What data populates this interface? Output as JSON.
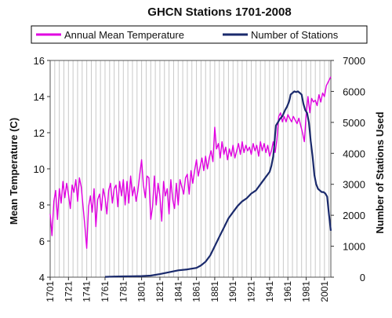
{
  "chart_data": {
    "type": "line",
    "title": "GHCN Stations 1701-2008",
    "ylabel_left": "Mean Temperature (C)",
    "ylabel_right": "Number of Stations Used",
    "xlim": [
      1701,
      2008
    ],
    "ylim_left": [
      4,
      16
    ],
    "ylim_right": [
      0,
      7000
    ],
    "left_ticks": [
      "4",
      "6",
      "8",
      "10",
      "12",
      "14",
      "16"
    ],
    "right_ticks": [
      "0",
      "1000",
      "2000",
      "3000",
      "4000",
      "5000",
      "6000",
      "7000"
    ],
    "x_ticks": [
      "1701",
      "1721",
      "1741",
      "1761",
      "1781",
      "1801",
      "1821",
      "1841",
      "1861",
      "1881",
      "1901",
      "1921",
      "1941",
      "1961",
      "1981",
      "2001"
    ],
    "grid": "vertical",
    "legend_position": "top",
    "series": [
      {
        "name": "Annual Mean Temperature",
        "axis": "left",
        "color": "#e000e0",
        "x": [
          1701,
          1703,
          1705,
          1707,
          1709,
          1711,
          1713,
          1715,
          1717,
          1719,
          1721,
          1723,
          1725,
          1727,
          1729,
          1731,
          1733,
          1735,
          1737,
          1739,
          1741,
          1743,
          1745,
          1747,
          1749,
          1751,
          1753,
          1755,
          1757,
          1759,
          1761,
          1763,
          1765,
          1767,
          1769,
          1771,
          1773,
          1775,
          1777,
          1779,
          1781,
          1783,
          1785,
          1787,
          1789,
          1791,
          1793,
          1795,
          1797,
          1799,
          1801,
          1803,
          1805,
          1807,
          1809,
          1811,
          1813,
          1815,
          1817,
          1819,
          1821,
          1823,
          1825,
          1827,
          1829,
          1831,
          1833,
          1835,
          1837,
          1839,
          1841,
          1843,
          1845,
          1847,
          1849,
          1851,
          1853,
          1855,
          1857,
          1859,
          1861,
          1863,
          1865,
          1867,
          1869,
          1871,
          1873,
          1875,
          1877,
          1879,
          1881,
          1883,
          1885,
          1887,
          1889,
          1891,
          1893,
          1895,
          1897,
          1899,
          1901,
          1903,
          1905,
          1907,
          1909,
          1911,
          1913,
          1915,
          1917,
          1919,
          1921,
          1923,
          1925,
          1927,
          1929,
          1931,
          1933,
          1935,
          1937,
          1939,
          1941,
          1943,
          1945,
          1947,
          1949,
          1951,
          1953,
          1955,
          1957,
          1959,
          1961,
          1963,
          1965,
          1967,
          1969,
          1971,
          1973,
          1975,
          1977,
          1979,
          1981,
          1983,
          1985,
          1987,
          1989,
          1991,
          1993,
          1995,
          1997,
          1999,
          2001,
          2003,
          2005,
          2008
        ],
        "y": [
          7.5,
          6.3,
          8.2,
          8.8,
          7.2,
          8.9,
          8.1,
          9.3,
          8.4,
          9.2,
          8.6,
          7.8,
          9.1,
          8.7,
          9.4,
          8.2,
          9.5,
          9.0,
          7.9,
          6.8,
          5.6,
          7.9,
          8.5,
          7.6,
          8.9,
          6.8,
          8.3,
          8.6,
          7.7,
          8.9,
          8.4,
          7.5,
          8.8,
          9.2,
          8.1,
          8.9,
          9.1,
          7.9,
          9.3,
          8.5,
          9.4,
          8.0,
          9.3,
          8.1,
          9.6,
          8.5,
          9.0,
          8.2,
          8.8,
          9.7,
          10.5,
          9.1,
          8.4,
          9.6,
          9.5,
          7.2,
          7.9,
          9.6,
          8.0,
          9.2,
          8.5,
          7.1,
          9.3,
          8.5,
          8.9,
          7.5,
          9.4,
          8.3,
          7.8,
          9.2,
          8.0,
          9.4,
          9.0,
          8.6,
          9.5,
          9.7,
          8.6,
          9.9,
          9.2,
          9.9,
          10.5,
          9.6,
          10.1,
          10.6,
          9.9,
          10.7,
          10.0,
          10.6,
          11.0,
          10.4,
          12.3,
          11.1,
          11.4,
          10.6,
          11.5,
          10.8,
          11.2,
          10.5,
          11.1,
          10.7,
          11.3,
          10.6,
          11.0,
          11.4,
          10.8,
          11.5,
          10.9,
          11.3,
          11.0,
          11.2,
          10.8,
          11.4,
          11.0,
          11.3,
          10.7,
          11.5,
          11.0,
          11.4,
          10.9,
          11.3,
          10.7,
          11.0,
          11.5,
          10.9,
          11.6,
          12.9,
          13.1,
          12.6,
          12.9,
          12.6,
          13.0,
          12.8,
          12.6,
          12.9,
          12.7,
          12.5,
          12.8,
          12.4,
          12.0,
          11.5,
          13.0,
          14.0,
          13.1,
          13.9,
          13.7,
          13.8,
          13.5,
          14.1,
          13.7,
          14.2,
          14.0,
          14.6,
          14.8,
          15.1
        ]
      },
      {
        "name": "Number of Stations",
        "axis": "right",
        "color": "#1a2a6c",
        "x": [
          1701,
          1741,
          1751,
          1761,
          1771,
          1781,
          1791,
          1801,
          1811,
          1821,
          1831,
          1841,
          1851,
          1861,
          1866,
          1871,
          1876,
          1881,
          1886,
          1891,
          1896,
          1901,
          1906,
          1911,
          1916,
          1921,
          1926,
          1931,
          1936,
          1941,
          1943,
          1945,
          1946,
          1947,
          1948,
          1950,
          1952,
          1955,
          1958,
          1960,
          1962,
          1963,
          1964,
          1966,
          1968,
          1970,
          1972,
          1974,
          1976,
          1978,
          1980,
          1982,
          1984,
          1985,
          1986,
          1988,
          1990,
          1992,
          1994,
          1996,
          1998,
          2000,
          2002,
          2004,
          2006,
          2008
        ],
        "y": [
          null,
          null,
          null,
          10,
          20,
          25,
          30,
          35,
          50,
          100,
          160,
          220,
          250,
          300,
          380,
          500,
          700,
          1000,
          1300,
          1600,
          1900,
          2100,
          2300,
          2450,
          2550,
          2700,
          2800,
          3000,
          3200,
          3400,
          3600,
          3900,
          4200,
          4600,
          4900,
          5000,
          5100,
          5200,
          5400,
          5500,
          5650,
          5750,
          5900,
          5950,
          6000,
          5980,
          6000,
          5950,
          5900,
          5600,
          5400,
          5300,
          5000,
          4700,
          4400,
          3900,
          3300,
          3000,
          2850,
          2800,
          2750,
          2750,
          2700,
          2600,
          2000,
          1500
        ]
      }
    ]
  }
}
